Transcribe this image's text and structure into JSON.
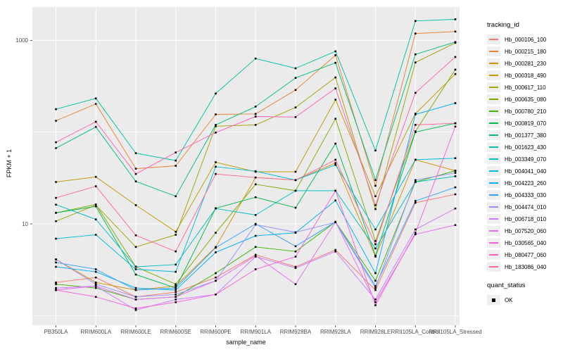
{
  "chart_data": {
    "type": "line",
    "title": "",
    "xlabel": "sample_name",
    "ylabel": "FPKM + 1",
    "y_scale": "log10",
    "y_ticks": [
      10,
      1000
    ],
    "y_minor_gridlines": [
      1,
      100
    ],
    "ylim": [
      1.05,
      2300
    ],
    "grid": "on",
    "legend_position": "right",
    "legend_title": "tracking_id",
    "quant_legend": {
      "title": "quant_status",
      "items": [
        "OK"
      ]
    },
    "marker": "black-square",
    "colors": {
      "panel_bg": "#EBEBEB",
      "grid": "#FFFFFF",
      "tick_label": "#4D4D4D",
      "marker": "#000000"
    },
    "categories": [
      "PB350LA",
      "RRIM600LA",
      "RRIM600LE",
      "RRIM600SE",
      "RRIM600PE",
      "RRIM901LA",
      "RRIM928BA",
      "RRIM928LA",
      "RRIM928LE",
      "RRII105LA_Control",
      "RRII105LA_Stressed"
    ],
    "series": [
      {
        "name": "Hb_000106_100",
        "color": "#F8766D",
        "values": [
          2.3,
          2.6,
          1.6,
          1.8,
          2.6,
          4.6,
          3.4,
          5.2,
          1.9,
          17,
          21
        ]
      },
      {
        "name": "Hb_000215_180",
        "color": "#EA8331",
        "values": [
          133,
          203,
          40,
          43,
          156,
          158,
          288,
          690,
          26,
          1190,
          1250
        ]
      },
      {
        "name": "Hb_000281_230",
        "color": "#D89000",
        "values": [
          4.1,
          2.3,
          1.9,
          2.1,
          5.6,
          32,
          30,
          46,
          4.4,
          50,
          38
        ]
      },
      {
        "name": "Hb_000318_490",
        "color": "#C09B00",
        "values": [
          28.6,
          32.5,
          16,
          8.2,
          47,
          37,
          37,
          226,
          20,
          159,
          430
        ]
      },
      {
        "name": "Hb_000617_110",
        "color": "#A3A500",
        "values": [
          10.7,
          16,
          5.6,
          7.6,
          116,
          120,
          186,
          395,
          14.5,
          575,
          940
        ]
      },
      {
        "name": "Hb_000635_080",
        "color": "#7CAE00",
        "values": [
          13.2,
          16.3,
          3.4,
          2.2,
          8.0,
          27,
          23,
          140,
          6.5,
          102,
          480
        ]
      },
      {
        "name": "Hb_000780_210",
        "color": "#39B600",
        "values": [
          2.2,
          2.0,
          1.5,
          1.6,
          2.9,
          5.6,
          5.0,
          10.5,
          2.4,
          28.6,
          38
        ]
      },
      {
        "name": "Hb_000819_070",
        "color": "#00BB4E",
        "values": [
          13.2,
          15.5,
          2.8,
          2.0,
          14.8,
          19.5,
          15,
          75,
          4.5,
          100,
          125
        ]
      },
      {
        "name": "Hb_001377_380",
        "color": "#00BF7D",
        "values": [
          67,
          114,
          29,
          20,
          120,
          190,
          390,
          570,
          30,
          705,
          960
        ]
      },
      {
        "name": "Hb_001623_430",
        "color": "#00C1A3",
        "values": [
          178,
          233,
          59,
          49,
          264,
          634,
          497,
          760,
          63,
          1630,
          1700
        ]
      },
      {
        "name": "Hb_003349_070",
        "color": "#00BFC4",
        "values": [
          16.2,
          11.2,
          3.4,
          3.6,
          14.7,
          12.5,
          23,
          23,
          5.4,
          28.6,
          33
        ]
      },
      {
        "name": "Hb_004041_040",
        "color": "#00BAE0",
        "values": [
          6.9,
          7.6,
          3.2,
          3.0,
          42,
          37.5,
          30,
          44,
          8.7,
          50,
          52
        ]
      },
      {
        "name": "Hb_004223_260",
        "color": "#00B0F6",
        "values": [
          3.4,
          3.0,
          2.0,
          1.9,
          4.9,
          7.4,
          8.0,
          18,
          2.9,
          156,
          207
        ]
      },
      {
        "name": "Hb_004333_030",
        "color": "#35A2FF",
        "values": [
          3.8,
          3.2,
          1.9,
          2.0,
          5.5,
          10,
          5.7,
          10.5,
          2.1,
          17.8,
          25
        ]
      },
      {
        "name": "Hb_004474_010",
        "color": "#9590FF",
        "values": [
          4.1,
          2.2,
          1.6,
          1.7,
          2.4,
          9.8,
          8.1,
          10.4,
          2.0,
          30,
          36
        ]
      },
      {
        "name": "Hb_006718_010",
        "color": "#C77CFF",
        "values": [
          2.0,
          2.1,
          1.15,
          1.5,
          1.7,
          4.4,
          3.3,
          5.0,
          1.5,
          8.7,
          14.7
        ]
      },
      {
        "name": "Hb_007520_060",
        "color": "#E76BF3",
        "values": [
          1.9,
          2.1,
          1.5,
          1.6,
          2.4,
          4.5,
          2.2,
          10.5,
          1.4,
          7.7,
          9.7
        ]
      },
      {
        "name": "Hb_030565_040",
        "color": "#FA62DB",
        "values": [
          1.9,
          1.6,
          1.2,
          1.4,
          1.7,
          3.2,
          4.4,
          23,
          1.3,
          8.0,
          115
        ]
      },
      {
        "name": "Hb_080477_060",
        "color": "#FF62BC",
        "values": [
          77.6,
          130,
          35,
          60,
          99,
          148,
          146,
          300,
          16,
          268,
          660
        ]
      },
      {
        "name": "Hb_183086_040",
        "color": "#FF6A98",
        "values": [
          19.2,
          25.7,
          7.5,
          5.0,
          35,
          32,
          30,
          50,
          6.0,
          120,
          125
        ]
      }
    ]
  }
}
